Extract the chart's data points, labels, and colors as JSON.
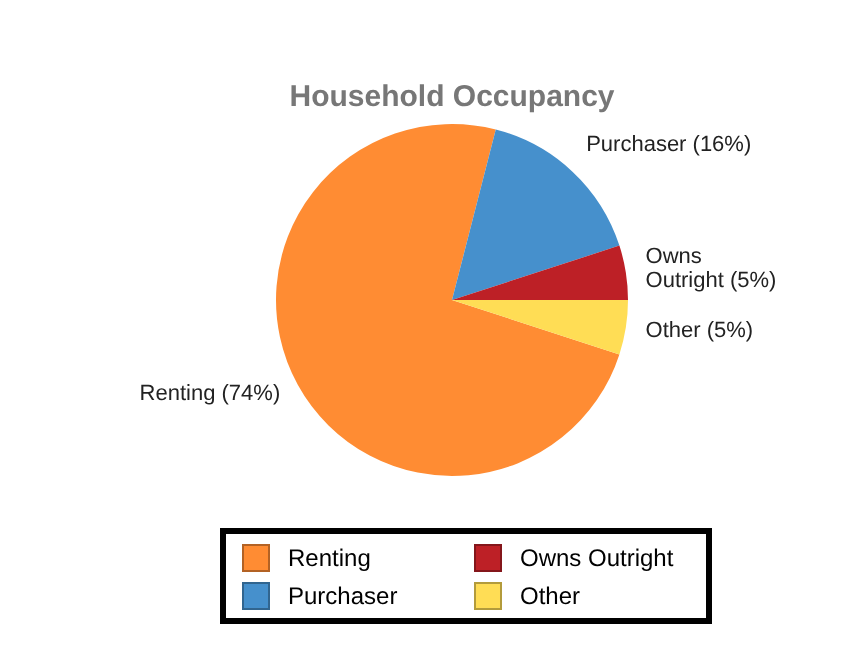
{
  "chart_data": {
    "type": "pie",
    "title": "Household Occupancy",
    "categories": [
      "Renting",
      "Purchaser",
      "Owns Outright",
      "Other"
    ],
    "values": [
      74,
      16,
      5,
      5
    ],
    "colors": [
      "#ff8c33",
      "#4690cc",
      "#bd2026",
      "#ffdd55"
    ],
    "value_labels": [
      "(74%)",
      "(16%)",
      "(5%)",
      "(5%)"
    ],
    "legend": "bottom"
  }
}
